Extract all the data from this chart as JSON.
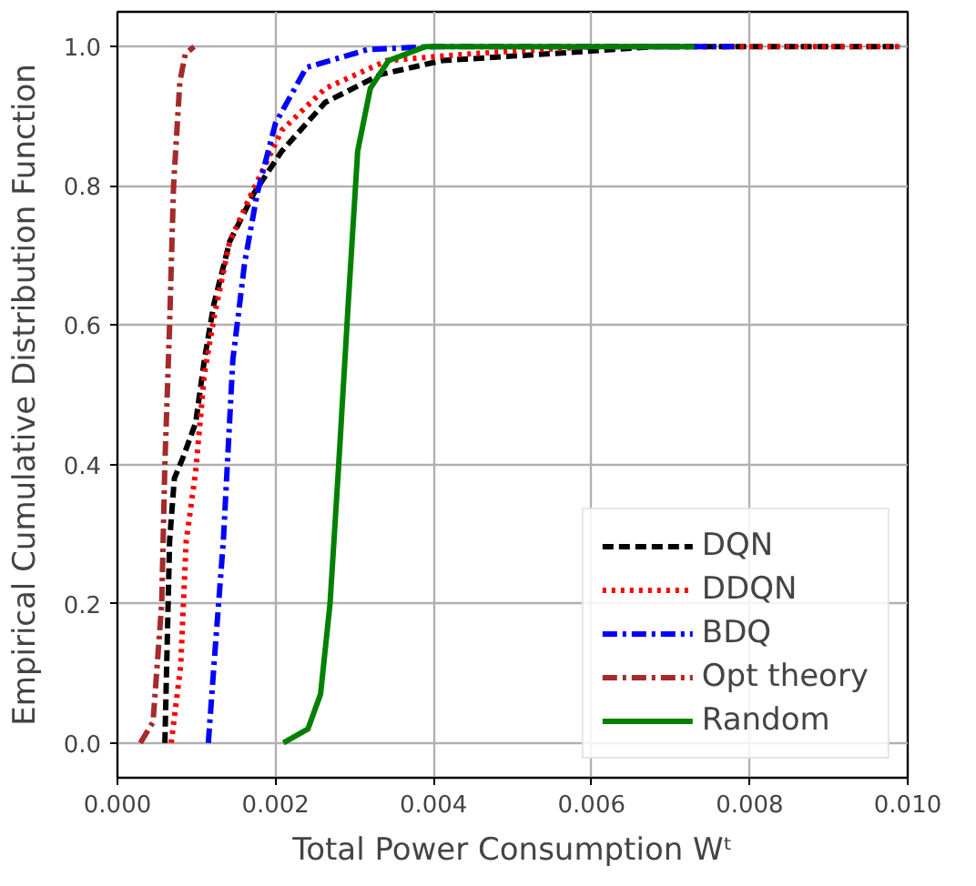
{
  "chart_data": {
    "type": "line",
    "xlabel": "Total Power Consumption Wᵗ",
    "ylabel": "Empirical Cumulative Distribution Function",
    "xlim": [
      0,
      0.01
    ],
    "ylim": [
      -0.05,
      1.05
    ],
    "xticks": [
      {
        "value": 0,
        "label": "0.000"
      },
      {
        "value": 0.002,
        "label": "0.002"
      },
      {
        "value": 0.004,
        "label": "0.004"
      },
      {
        "value": 0.006,
        "label": "0.006"
      },
      {
        "value": 0.008,
        "label": "0.008"
      },
      {
        "value": 0.01,
        "label": "0.010"
      }
    ],
    "yticks": [
      {
        "value": 0,
        "label": "0.0"
      },
      {
        "value": 0.2,
        "label": "0.2"
      },
      {
        "value": 0.4,
        "label": "0.4"
      },
      {
        "value": 0.6,
        "label": "0.6"
      },
      {
        "value": 0.8,
        "label": "0.8"
      },
      {
        "value": 1,
        "label": "1.0"
      }
    ],
    "grid": true,
    "legend": "bottom right",
    "series": [
      {
        "name": "DQN",
        "color": "#000000",
        "line_style": "dashed",
        "x": [
          0.0006,
          0.00066,
          0.00072,
          0.00083,
          0.00099,
          0.0011,
          0.00122,
          0.00142,
          0.00173,
          0.00208,
          0.00263,
          0.00333,
          0.00411,
          0.0055,
          0.0068,
          0.0099
        ],
        "values": [
          0,
          0.29,
          0.38,
          0.41,
          0.46,
          0.55,
          0.63,
          0.72,
          0.79,
          0.85,
          0.92,
          0.96,
          0.98,
          0.99,
          1.0,
          1.0
        ]
      },
      {
        "name": "DDQN",
        "color": "#ff0000",
        "line_style": "dotted",
        "x": [
          0.00068,
          0.0008,
          0.00087,
          0.00099,
          0.0011,
          0.00122,
          0.00142,
          0.0017,
          0.00208,
          0.00263,
          0.00341,
          0.0045,
          0.006,
          0.0099
        ],
        "values": [
          0,
          0.11,
          0.29,
          0.39,
          0.53,
          0.61,
          0.72,
          0.79,
          0.88,
          0.94,
          0.98,
          0.99,
          1.0,
          1.0
        ]
      },
      {
        "name": "BDQ",
        "color": "#0000ff",
        "line_style": "dashdot",
        "x": [
          0.00115,
          0.00122,
          0.00134,
          0.00146,
          0.00161,
          0.00177,
          0.002,
          0.00239,
          0.00317,
          0.004,
          0.0078
        ],
        "values": [
          0,
          0.11,
          0.29,
          0.55,
          0.69,
          0.79,
          0.89,
          0.97,
          0.996,
          1.0,
          1.0
        ]
      },
      {
        "name": "Opt theory",
        "color": "#a52a2a",
        "line_style": "dashdot",
        "x": [
          0.00029,
          0.00045,
          0.00056,
          0.0006,
          0.00066,
          0.00071,
          0.00079,
          0.00086,
          0.00097
        ],
        "values": [
          0,
          0.03,
          0.2,
          0.4,
          0.6,
          0.8,
          0.95,
          0.99,
          1.0
        ]
      },
      {
        "name": "Random",
        "color": "#008000",
        "line_style": "solid",
        "x": [
          0.0021,
          0.00241,
          0.00257,
          0.00269,
          0.0028,
          0.00292,
          0.00304,
          0.0032,
          0.00343,
          0.0039,
          0.0073
        ],
        "values": [
          0,
          0.02,
          0.07,
          0.2,
          0.4,
          0.63,
          0.85,
          0.94,
          0.98,
          1.0,
          1.0
        ]
      }
    ]
  }
}
